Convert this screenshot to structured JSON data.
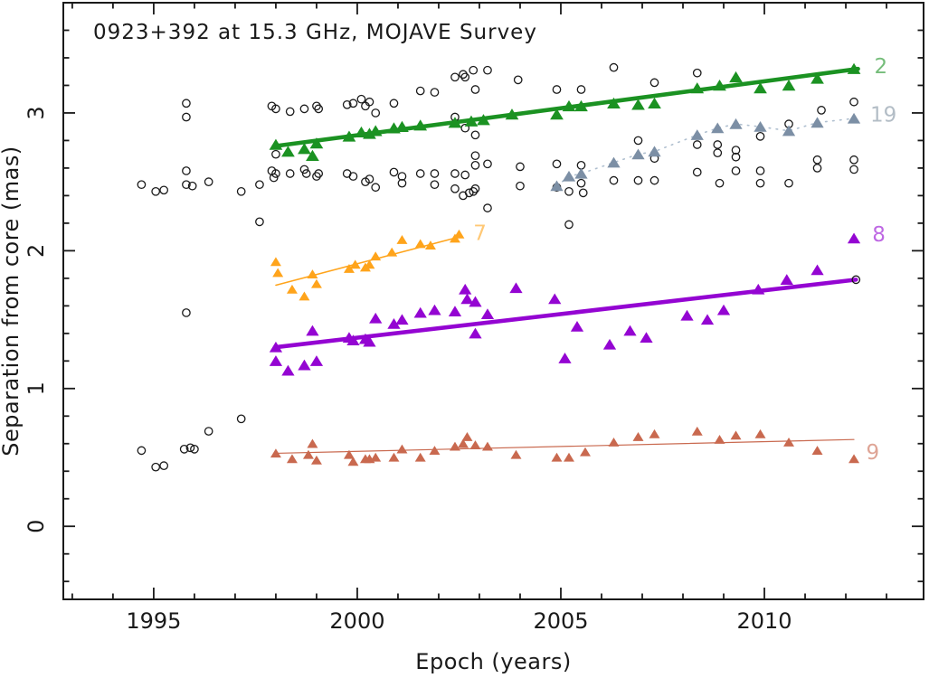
{
  "figure": {
    "background": "#ffffff",
    "axis_color": "#1a1a1a"
  },
  "chart_data": {
    "type": "scatter",
    "title": "0923+392 at 15.3 GHz, MOJAVE Survey",
    "xlabel": "Epoch (years)",
    "ylabel": "Separation from core (mas)",
    "xlim": [
      1992.78,
      2013.91
    ],
    "ylim": [
      -0.53,
      3.8
    ],
    "grid": false,
    "legend_position": "inline-right-edge-component-numbers",
    "x_ticks": {
      "major": [
        1995,
        2000,
        2005,
        2010
      ],
      "labels": [
        "1995",
        "2000",
        "2005",
        "2010"
      ],
      "minor_step": 1
    },
    "y_ticks": {
      "major": [
        0,
        1,
        2,
        3
      ],
      "labels": [
        "0",
        "1",
        "2",
        "3"
      ],
      "minor_step": 0.2
    },
    "series": [
      {
        "id": "unidentified",
        "label": "",
        "marker": "open-circle",
        "marker_size": 4.2,
        "color": "#1a1a1a",
        "line": {
          "type": "none"
        },
        "points": [
          [
            1994.7,
            0.55
          ],
          [
            1995.05,
            0.43
          ],
          [
            1995.25,
            0.44
          ],
          [
            1995.75,
            0.56
          ],
          [
            1995.9,
            0.57
          ],
          [
            1996.0,
            0.56
          ],
          [
            1996.35,
            0.69
          ],
          [
            1997.15,
            0.78
          ],
          [
            1994.7,
            2.48
          ],
          [
            1995.05,
            2.43
          ],
          [
            1995.25,
            2.44
          ],
          [
            1995.8,
            2.48
          ],
          [
            1995.95,
            2.47
          ],
          [
            1996.35,
            2.5
          ],
          [
            1997.15,
            2.43
          ],
          [
            1997.6,
            2.48
          ],
          [
            1997.6,
            2.21
          ],
          [
            1995.8,
            3.07
          ],
          [
            1995.8,
            2.97
          ],
          [
            1995.8,
            2.58
          ],
          [
            1995.8,
            1.55
          ],
          [
            1997.9,
            3.05
          ],
          [
            1998.0,
            3.03
          ],
          [
            1998.35,
            3.01
          ],
          [
            1998.7,
            3.03
          ],
          [
            1999.0,
            3.05
          ],
          [
            1999.05,
            3.03
          ],
          [
            1999.75,
            3.06
          ],
          [
            1999.9,
            3.07
          ],
          [
            2000.1,
            3.1
          ],
          [
            2000.2,
            3.05
          ],
          [
            2000.3,
            3.08
          ],
          [
            2000.45,
            3.0
          ],
          [
            2000.9,
            3.07
          ],
          [
            2001.55,
            3.16
          ],
          [
            2001.9,
            3.15
          ],
          [
            2002.4,
            3.26
          ],
          [
            2002.6,
            3.28
          ],
          [
            2002.65,
            3.26
          ],
          [
            2002.85,
            3.31
          ],
          [
            2003.2,
            3.31
          ],
          [
            2002.9,
            3.17
          ],
          [
            2003.95,
            3.24
          ],
          [
            2004.9,
            3.17
          ],
          [
            2005.5,
            3.17
          ],
          [
            2006.3,
            3.33
          ],
          [
            2007.3,
            3.22
          ],
          [
            2008.35,
            3.29
          ],
          [
            2011.4,
            3.02
          ],
          [
            2012.2,
            3.08
          ],
          [
            1997.9,
            2.58
          ],
          [
            1997.95,
            2.53
          ],
          [
            1998.0,
            2.56
          ],
          [
            1998.0,
            2.7
          ],
          [
            1998.35,
            2.56
          ],
          [
            1998.7,
            2.59
          ],
          [
            1998.75,
            2.56
          ],
          [
            1999.0,
            2.54
          ],
          [
            1999.05,
            2.56
          ],
          [
            1999.75,
            2.56
          ],
          [
            1999.9,
            2.54
          ],
          [
            2000.2,
            2.5
          ],
          [
            2000.3,
            2.52
          ],
          [
            2000.45,
            2.46
          ],
          [
            2000.9,
            2.57
          ],
          [
            2001.1,
            2.54
          ],
          [
            2001.1,
            2.49
          ],
          [
            2001.55,
            2.56
          ],
          [
            2001.9,
            2.56
          ],
          [
            2001.9,
            2.48
          ],
          [
            2002.4,
            2.56
          ],
          [
            2002.4,
            2.45
          ],
          [
            2002.65,
            2.55
          ],
          [
            2002.6,
            2.4
          ],
          [
            2002.75,
            2.42
          ],
          [
            2002.85,
            2.43
          ],
          [
            2002.9,
            2.45
          ],
          [
            2002.9,
            2.69
          ],
          [
            2002.9,
            2.62
          ],
          [
            2003.2,
            2.63
          ],
          [
            2003.2,
            2.31
          ],
          [
            2004.0,
            2.61
          ],
          [
            2004.0,
            2.47
          ],
          [
            2002.4,
            2.97
          ],
          [
            2002.65,
            2.89
          ],
          [
            2002.9,
            2.84
          ],
          [
            2004.9,
            2.63
          ],
          [
            2004.9,
            2.46
          ],
          [
            2005.2,
            2.43
          ],
          [
            2005.2,
            2.19
          ],
          [
            2005.5,
            2.62
          ],
          [
            2005.5,
            2.49
          ],
          [
            2005.55,
            2.42
          ],
          [
            2006.3,
            2.51
          ],
          [
            2006.9,
            2.8
          ],
          [
            2006.9,
            2.51
          ],
          [
            2007.3,
            2.67
          ],
          [
            2007.3,
            2.51
          ],
          [
            2008.35,
            2.77
          ],
          [
            2008.35,
            2.57
          ],
          [
            2008.85,
            2.77
          ],
          [
            2008.85,
            2.71
          ],
          [
            2008.9,
            2.49
          ],
          [
            2009.3,
            2.73
          ],
          [
            2009.3,
            2.68
          ],
          [
            2009.3,
            2.58
          ],
          [
            2009.9,
            2.83
          ],
          [
            2009.9,
            2.58
          ],
          [
            2009.9,
            2.49
          ],
          [
            2010.6,
            2.92
          ],
          [
            2010.6,
            2.49
          ],
          [
            2011.3,
            2.66
          ],
          [
            2011.3,
            2.6
          ],
          [
            2012.2,
            2.66
          ],
          [
            2012.2,
            2.59
          ],
          [
            2012.25,
            1.79
          ]
        ]
      },
      {
        "id": "component-2",
        "label": "2",
        "marker": "triangle",
        "marker_size": 6.4,
        "color": "#1B9222",
        "label_pos": [
          2012.7,
          3.34
        ],
        "line": {
          "type": "fit",
          "width": 4.6,
          "color": "#1B9222",
          "from": [
            1998.0,
            2.76
          ],
          "to": [
            2012.3,
            3.32
          ]
        },
        "points": [
          [
            1998.0,
            2.77
          ],
          [
            1998.3,
            2.72
          ],
          [
            1998.7,
            2.74
          ],
          [
            1998.9,
            2.69
          ],
          [
            1999.0,
            2.78
          ],
          [
            1999.8,
            2.83
          ],
          [
            2000.1,
            2.86
          ],
          [
            2000.3,
            2.85
          ],
          [
            2000.45,
            2.87
          ],
          [
            2000.9,
            2.89
          ],
          [
            2001.1,
            2.9
          ],
          [
            2001.55,
            2.91
          ],
          [
            2002.4,
            2.93
          ],
          [
            2002.8,
            2.94
          ],
          [
            2003.1,
            2.95
          ],
          [
            2003.8,
            2.99
          ],
          [
            2004.9,
            2.99
          ],
          [
            2005.2,
            3.05
          ],
          [
            2005.5,
            3.05
          ],
          [
            2006.3,
            3.07
          ],
          [
            2006.9,
            3.06
          ],
          [
            2007.3,
            3.07
          ],
          [
            2008.35,
            3.18
          ],
          [
            2008.9,
            3.2
          ],
          [
            2009.3,
            3.26
          ],
          [
            2009.9,
            3.18
          ],
          [
            2010.6,
            3.2
          ],
          [
            2011.3,
            3.25
          ],
          [
            2012.2,
            3.32
          ]
        ]
      },
      {
        "id": "component-19",
        "label": "19",
        "marker": "triangle",
        "marker_size": 6.2,
        "color": "#7C8FA5",
        "label_color": "#B3BDC6",
        "label_pos": [
          2012.6,
          2.99
        ],
        "line": {
          "type": "connect",
          "width": 1.6,
          "color": "#AFBFCF",
          "dash": "1.5 6.5"
        },
        "points": [
          [
            2004.9,
            2.47
          ],
          [
            2005.2,
            2.54
          ],
          [
            2005.5,
            2.56
          ],
          [
            2006.3,
            2.64
          ],
          [
            2006.9,
            2.7
          ],
          [
            2007.3,
            2.72
          ],
          [
            2008.35,
            2.84
          ],
          [
            2008.85,
            2.89
          ],
          [
            2009.3,
            2.92
          ],
          [
            2009.9,
            2.9
          ],
          [
            2010.6,
            2.87
          ],
          [
            2011.3,
            2.93
          ],
          [
            2012.2,
            2.96
          ]
        ]
      },
      {
        "id": "component-7",
        "label": "7",
        "marker": "triangle",
        "marker_size": 5.2,
        "color": "#FFA41B",
        "label_pos": [
          2002.85,
          2.13
        ],
        "line": {
          "type": "fit",
          "width": 1.5,
          "color": "#FFA41B",
          "from": [
            1998.0,
            1.75
          ],
          "to": [
            2002.5,
            2.1
          ]
        },
        "points": [
          [
            1998.0,
            1.92
          ],
          [
            1998.05,
            1.84
          ],
          [
            1998.4,
            1.72
          ],
          [
            1998.7,
            1.67
          ],
          [
            1998.9,
            1.83
          ],
          [
            1999.0,
            1.76
          ],
          [
            1999.8,
            1.87
          ],
          [
            1999.95,
            1.9
          ],
          [
            2000.2,
            1.88
          ],
          [
            2000.3,
            1.9
          ],
          [
            2000.45,
            1.96
          ],
          [
            2000.85,
            1.99
          ],
          [
            2001.1,
            2.08
          ],
          [
            2001.55,
            2.05
          ],
          [
            2001.8,
            2.04
          ],
          [
            2002.4,
            2.09
          ],
          [
            2002.5,
            2.12
          ]
        ]
      },
      {
        "id": "component-8",
        "label": "8",
        "marker": "triangle",
        "marker_size": 6.2,
        "color": "#9405D2",
        "label_pos": [
          2012.65,
          2.12
        ],
        "line": {
          "type": "fit",
          "width": 4.6,
          "color": "#9405D2",
          "from": [
            1998.0,
            1.3
          ],
          "to": [
            2012.25,
            1.79
          ]
        },
        "points": [
          [
            1998.0,
            1.3
          ],
          [
            1998.0,
            1.2
          ],
          [
            1998.3,
            1.13
          ],
          [
            1998.7,
            1.17
          ],
          [
            1998.9,
            1.42
          ],
          [
            1999.0,
            1.2
          ],
          [
            1999.8,
            1.37
          ],
          [
            1999.9,
            1.35
          ],
          [
            2000.2,
            1.36
          ],
          [
            2000.3,
            1.34
          ],
          [
            2000.45,
            1.51
          ],
          [
            2000.9,
            1.47
          ],
          [
            2001.1,
            1.5
          ],
          [
            2001.55,
            1.55
          ],
          [
            2001.9,
            1.57
          ],
          [
            2002.4,
            1.56
          ],
          [
            2002.65,
            1.72
          ],
          [
            2002.7,
            1.65
          ],
          [
            2002.9,
            1.63
          ],
          [
            2002.9,
            1.4
          ],
          [
            2003.2,
            1.54
          ],
          [
            2003.9,
            1.73
          ],
          [
            2004.85,
            1.65
          ],
          [
            2005.1,
            1.22
          ],
          [
            2005.4,
            1.45
          ],
          [
            2006.2,
            1.32
          ],
          [
            2006.7,
            1.42
          ],
          [
            2007.1,
            1.37
          ],
          [
            2008.1,
            1.53
          ],
          [
            2008.6,
            1.5
          ],
          [
            2009.0,
            1.57
          ],
          [
            2009.85,
            1.72
          ],
          [
            2010.55,
            1.79
          ],
          [
            2011.3,
            1.86
          ],
          [
            2012.2,
            2.09
          ]
        ]
      },
      {
        "id": "component-9",
        "label": "9",
        "marker": "triangle",
        "marker_size": 5.2,
        "color": "#C9694F",
        "label_pos": [
          2012.5,
          0.54
        ],
        "line": {
          "type": "fit",
          "width": 1.2,
          "color": "#C9694F",
          "from": [
            1998.0,
            0.53
          ],
          "to": [
            2012.2,
            0.63
          ]
        },
        "points": [
          [
            1998.0,
            0.53
          ],
          [
            1998.4,
            0.49
          ],
          [
            1998.8,
            0.52
          ],
          [
            1998.9,
            0.6
          ],
          [
            1999.0,
            0.48
          ],
          [
            1999.8,
            0.52
          ],
          [
            1999.9,
            0.47
          ],
          [
            2000.2,
            0.49
          ],
          [
            2000.3,
            0.49
          ],
          [
            2000.45,
            0.5
          ],
          [
            2000.9,
            0.5
          ],
          [
            2001.1,
            0.56
          ],
          [
            2001.55,
            0.5
          ],
          [
            2001.9,
            0.55
          ],
          [
            2002.4,
            0.58
          ],
          [
            2002.6,
            0.6
          ],
          [
            2002.7,
            0.65
          ],
          [
            2002.9,
            0.59
          ],
          [
            2003.2,
            0.58
          ],
          [
            2003.9,
            0.52
          ],
          [
            2004.9,
            0.5
          ],
          [
            2005.2,
            0.5
          ],
          [
            2005.6,
            0.54
          ],
          [
            2006.3,
            0.61
          ],
          [
            2006.9,
            0.65
          ],
          [
            2007.3,
            0.67
          ],
          [
            2008.35,
            0.69
          ],
          [
            2008.9,
            0.63
          ],
          [
            2009.3,
            0.66
          ],
          [
            2009.9,
            0.67
          ],
          [
            2010.6,
            0.61
          ],
          [
            2011.3,
            0.55
          ],
          [
            2012.2,
            0.49
          ]
        ]
      }
    ]
  }
}
